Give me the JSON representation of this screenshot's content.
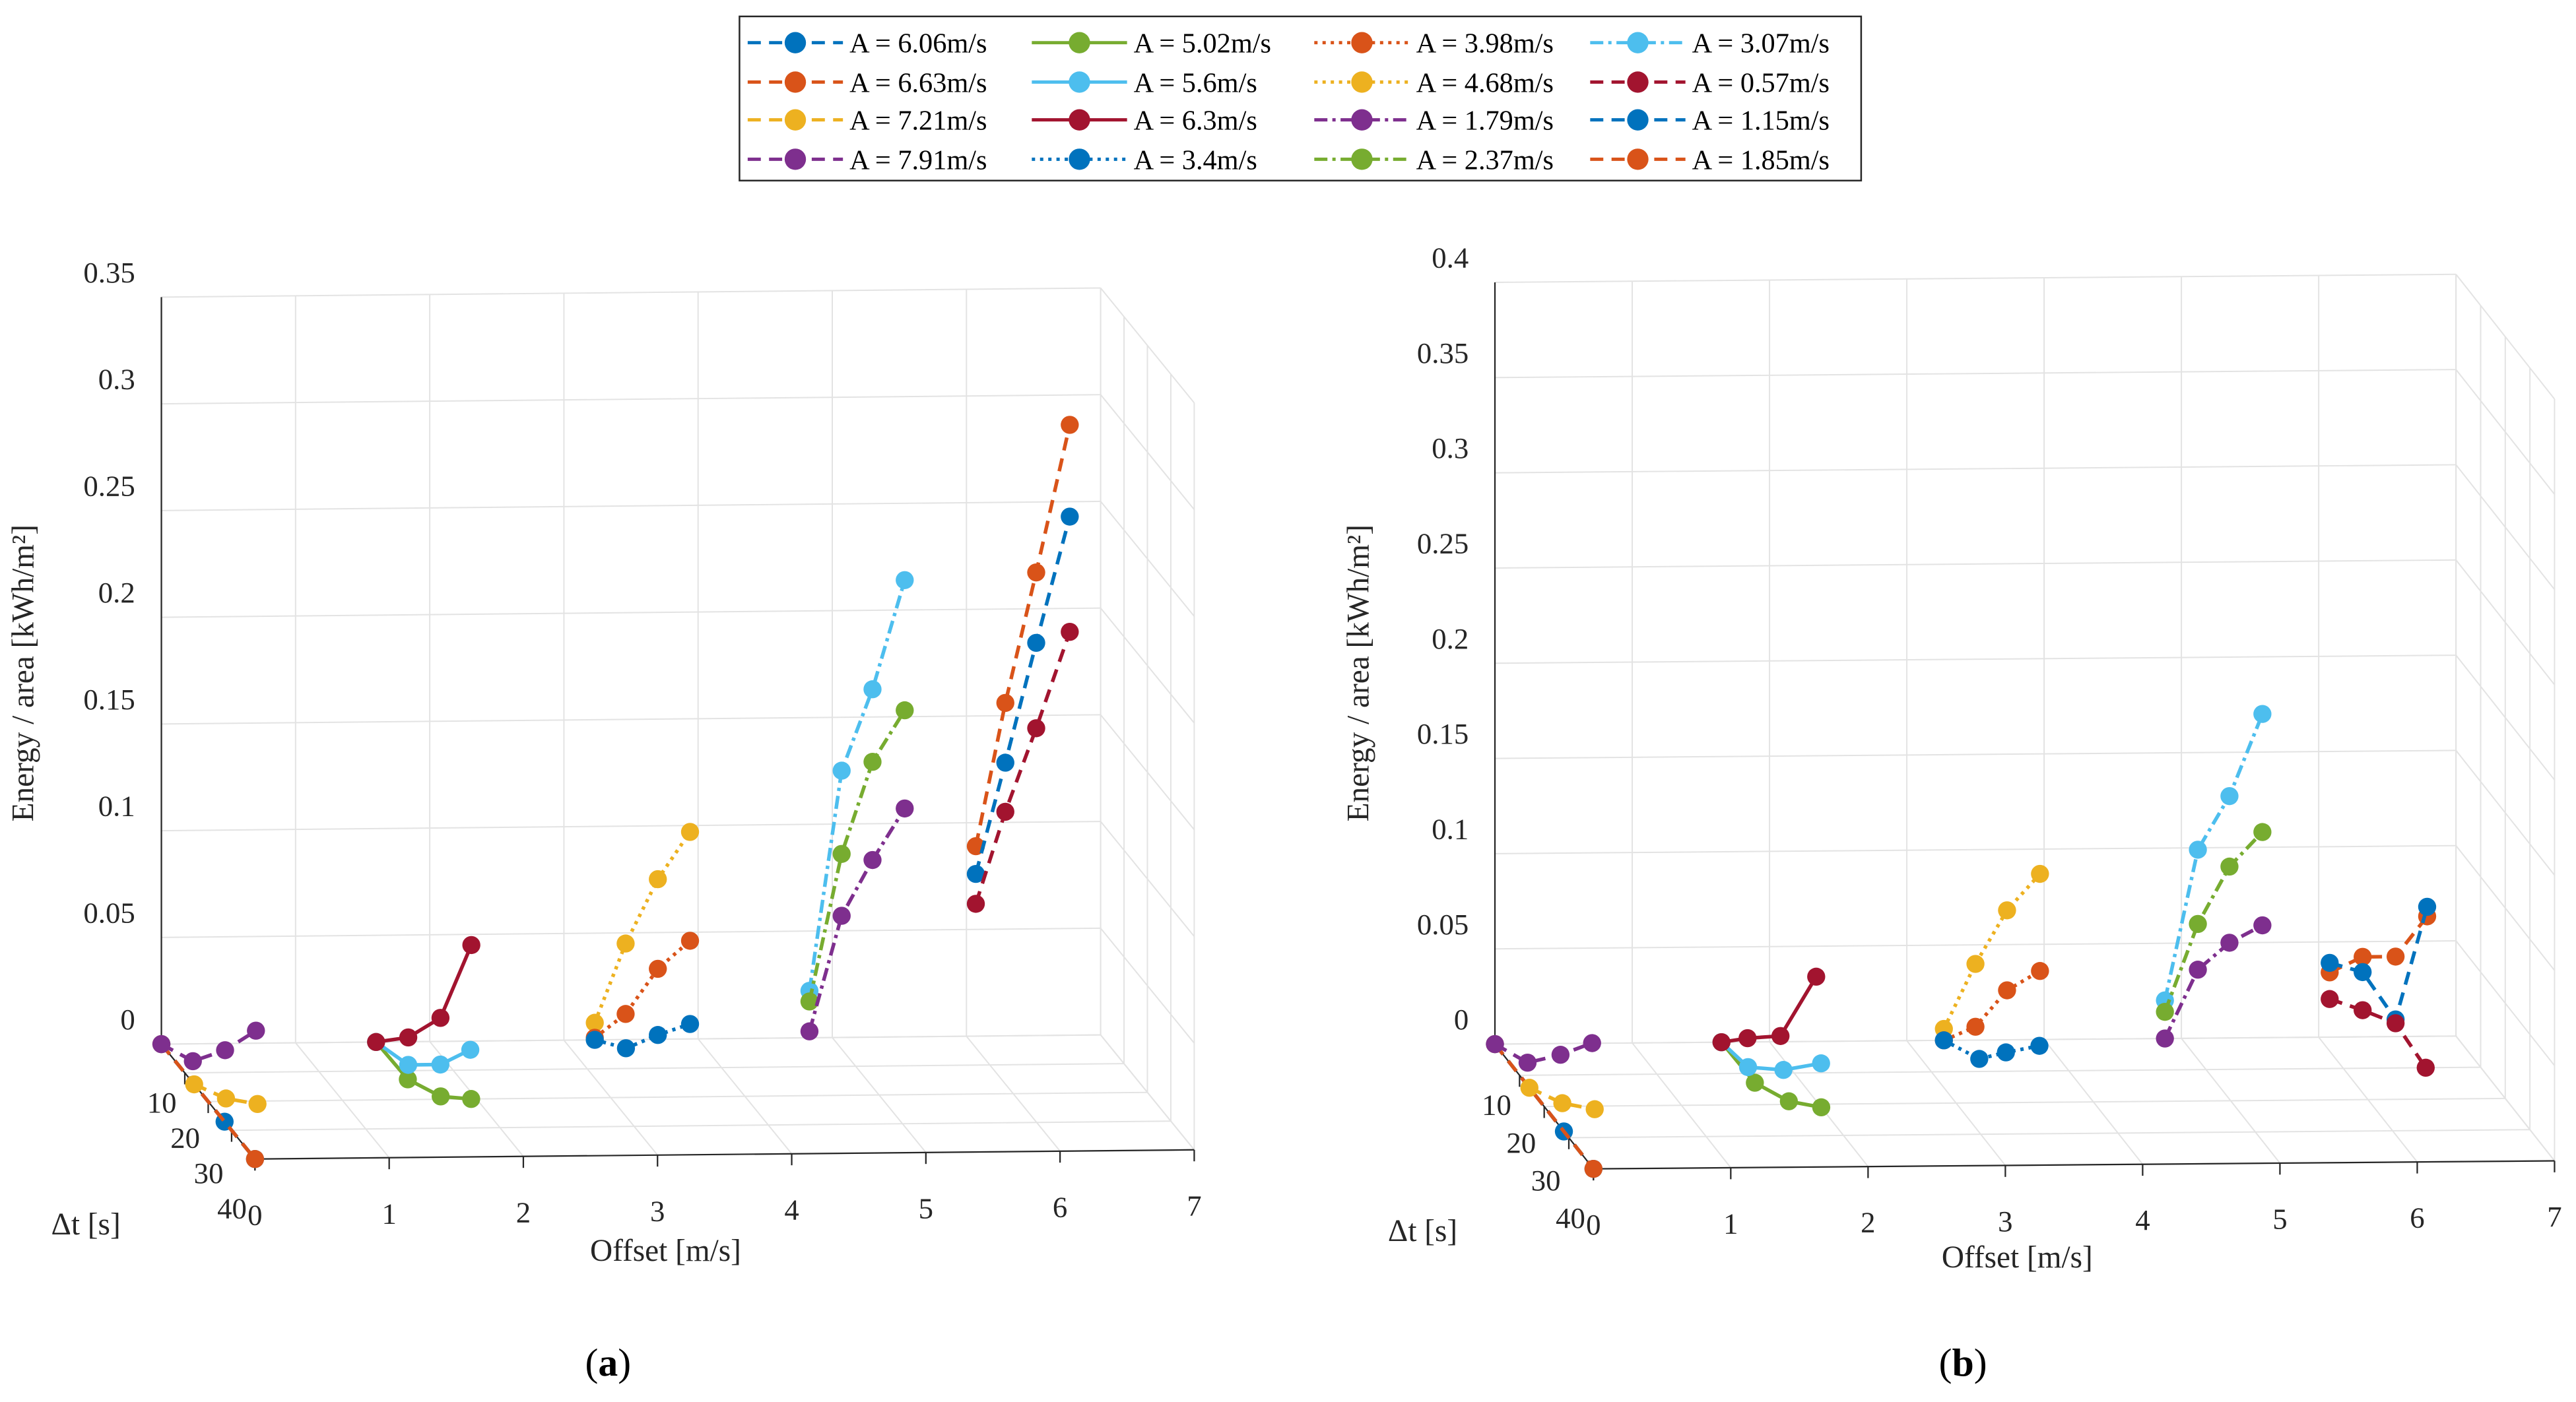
{
  "chart_data": {
    "type": "line",
    "title": "",
    "legend_position": "top-center",
    "legend": [
      {
        "label": "A = 6.06m/s",
        "color": "#0072BD",
        "style": "dashed"
      },
      {
        "label": "A = 5.02m/s",
        "color": "#77AC30",
        "style": "solid"
      },
      {
        "label": "A = 3.98m/s",
        "color": "#D95319",
        "style": "dotted"
      },
      {
        "label": "A = 3.07m/s",
        "color": "#4DBEEE",
        "style": "dashdot"
      },
      {
        "label": "A = 6.63m/s",
        "color": "#D95319",
        "style": "dashed"
      },
      {
        "label": "A = 5.6m/s",
        "color": "#4DBEEE",
        "style": "solid"
      },
      {
        "label": "A = 4.68m/s",
        "color": "#EDB120",
        "style": "dotted"
      },
      {
        "label": "A = 0.57m/s",
        "color": "#A2142F",
        "style": "dashed"
      },
      {
        "label": "A = 7.21m/s",
        "color": "#EDB120",
        "style": "dashed"
      },
      {
        "label": "A = 6.3m/s",
        "color": "#A2142F",
        "style": "solid"
      },
      {
        "label": "A = 1.79m/s",
        "color": "#7E2F8E",
        "style": "dashdot"
      },
      {
        "label": "A = 1.15m/s",
        "color": "#0072BD",
        "style": "dashed"
      },
      {
        "label": "A = 7.91m/s",
        "color": "#7E2F8E",
        "style": "dashed"
      },
      {
        "label": "A = 3.4m/s",
        "color": "#0072BD",
        "style": "dotted"
      },
      {
        "label": "A = 2.37m/s",
        "color": "#77AC30",
        "style": "dashdot"
      },
      {
        "label": "A = 1.85m/s",
        "color": "#D95319",
        "style": "dashed"
      }
    ],
    "panels": [
      {
        "label_open": "(",
        "label_letter": "a",
        "label_close": ")",
        "xlabel": "Offset [m/s]",
        "ylabel": "Δt [s]",
        "zlabel": "Energy / area [kWh/m²]",
        "xlim": [
          0,
          7
        ],
        "ylim": [
          0,
          40
        ],
        "zlim": [
          0,
          0.35
        ],
        "xticks": [
          "0",
          "1",
          "2",
          "3",
          "4",
          "5",
          "6",
          "7"
        ],
        "yticks": [
          "10",
          "20",
          "30",
          "40"
        ],
        "zticks": [
          "0",
          "0.05",
          "0.1",
          "0.15",
          "0.2",
          "0.25",
          "0.3",
          "0.35"
        ],
        "series": {
          "A = 6.06m/s": [
            [
              0,
              0,
              0
            ],
            [
              0,
              27,
              0
            ],
            [
              0,
              40,
              0
            ]
          ],
          "A = 6.63m/s": [
            [
              0,
              0,
              0
            ],
            [
              0,
              40,
              0
            ]
          ],
          "A = 7.21m/s": [
            [
              0,
              14,
              0
            ],
            [
              0.15,
              19,
              0
            ],
            [
              0.35,
              21,
              0
            ]
          ],
          "A = 7.91m/s": [
            [
              0,
              0,
              0
            ],
            [
              0.13,
              6,
              0
            ],
            [
              0.37,
              6,
              0.005
            ],
            [
              0.6,
              6,
              0.014
            ]
          ],
          "A = 5.02m/s": [
            [
              1.6,
              0,
              0
            ],
            [
              1.61,
              13,
              0
            ],
            [
              1.75,
              19,
              0
            ],
            [
              1.96,
              20,
              0
            ]
          ],
          "A = 5.6m/s": [
            [
              1.6,
              0,
              0
            ],
            [
              1.7,
              8,
              0
            ],
            [
              1.94,
              8,
              0
            ],
            [
              2.25,
              3,
              0
            ]
          ],
          "A = 6.3m/s": [
            [
              1.6,
              0,
              0
            ],
            [
              1.84,
              0,
              0.002
            ],
            [
              2.08,
              0,
              0.011
            ],
            [
              2.31,
              0,
              0.045
            ]
          ],
          "A = 4.68m/s": [
            [
              3.23,
              0,
              0.008
            ],
            [
              3.46,
              0,
              0.045
            ],
            [
              3.7,
              0,
              0.075
            ],
            [
              3.94,
              0,
              0.097
            ]
          ],
          "A = 3.98m/s": [
            [
              3.23,
              0,
              0.001
            ],
            [
              3.46,
              0,
              0.012
            ],
            [
              3.7,
              0,
              0.033
            ],
            [
              3.94,
              0,
              0.046
            ]
          ],
          "A = 3.4m/s": [
            [
              3.23,
              0,
              0
            ],
            [
              3.41,
              3,
              0
            ],
            [
              3.7,
              0,
              0.002
            ],
            [
              3.94,
              0,
              0.007
            ]
          ],
          "A = 3.07m/s": [
            [
              4.83,
              0,
              0.022
            ],
            [
              5.07,
              0,
              0.125
            ],
            [
              5.3,
              0,
              0.163
            ],
            [
              5.54,
              0,
              0.214
            ]
          ],
          "A = 2.37m/s": [
            [
              4.83,
              0,
              0.017
            ],
            [
              5.07,
              0,
              0.086
            ],
            [
              5.3,
              0,
              0.129
            ],
            [
              5.54,
              0,
              0.153
            ]
          ],
          "A = 1.79m/s": [
            [
              4.83,
              0,
              0.003
            ],
            [
              5.07,
              0,
              0.057
            ],
            [
              5.3,
              0,
              0.083
            ],
            [
              5.54,
              0,
              0.107
            ]
          ],
          "A = 1.85m/s": [
            [
              6.07,
              0,
              0.089
            ],
            [
              6.29,
              0,
              0.156
            ],
            [
              6.52,
              0,
              0.217
            ],
            [
              6.77,
              0,
              0.286
            ]
          ],
          "A = 1.15m/s": [
            [
              6.07,
              0,
              0.076
            ],
            [
              6.29,
              0,
              0.128
            ],
            [
              6.52,
              0,
              0.184
            ],
            [
              6.77,
              0,
              0.243
            ]
          ],
          "A = 0.57m/s": [
            [
              6.07,
              0,
              0.062
            ],
            [
              6.29,
              0,
              0.105
            ],
            [
              6.52,
              0,
              0.144
            ],
            [
              6.77,
              0,
              0.189
            ]
          ]
        }
      },
      {
        "label_open": "(",
        "label_letter": "b",
        "label_close": ")",
        "xlabel": "Offset [m/s]",
        "ylabel": "Δt [s]",
        "zlabel": "Energy / area [kWh/m²]",
        "xlim": [
          0,
          7
        ],
        "ylim": [
          0,
          40
        ],
        "zlim": [
          0,
          0.4
        ],
        "xticks": [
          "0",
          "1",
          "2",
          "3",
          "4",
          "5",
          "6",
          "7"
        ],
        "yticks": [
          "10",
          "20",
          "30",
          "40"
        ],
        "zticks": [
          "0",
          "0.05",
          "0.1",
          "0.15",
          "0.2",
          "0.25",
          "0.3",
          "0.35",
          "0.4"
        ],
        "series": {
          "A = 6.06m/s": [
            [
              0,
              0,
              0
            ],
            [
              0,
              28,
              0
            ],
            [
              0,
              40,
              0
            ]
          ],
          "A = 6.63m/s": [
            [
              0,
              0,
              0
            ],
            [
              0,
              40,
              0
            ]
          ],
          "A = 7.21m/s": [
            [
              0,
              14,
              0
            ],
            [
              0.15,
              19,
              0
            ],
            [
              0.35,
              21,
              0
            ]
          ],
          "A = 7.91m/s": [
            [
              0,
              0,
              0
            ],
            [
              0.13,
              6,
              0
            ],
            [
              0.37,
              6,
              0.004
            ],
            [
              0.6,
              6,
              0.01
            ]
          ],
          "A = 5.02m/s": [
            [
              1.65,
              0,
              0
            ],
            [
              1.66,
              13,
              0
            ],
            [
              1.8,
              19,
              0
            ],
            [
              2.0,
              21,
              0
            ]
          ],
          "A = 5.6m/s": [
            [
              1.65,
              0,
              0
            ],
            [
              1.7,
              8,
              0
            ],
            [
              1.94,
              9,
              0
            ],
            [
              2.25,
              7,
              0
            ]
          ],
          "A = 6.3m/s": [
            [
              1.65,
              0,
              0
            ],
            [
              1.84,
              0,
              0.002
            ],
            [
              2.08,
              0,
              0.003
            ],
            [
              2.34,
              0,
              0.034
            ]
          ],
          "A = 4.68m/s": [
            [
              3.27,
              0,
              0.006
            ],
            [
              3.5,
              0,
              0.04
            ],
            [
              3.73,
              0,
              0.068
            ],
            [
              3.97,
              0,
              0.087
            ]
          ],
          "A = 3.98m/s": [
            [
              3.27,
              0,
              0
            ],
            [
              3.5,
              0,
              0.007
            ],
            [
              3.73,
              0,
              0.026
            ],
            [
              3.97,
              0,
              0.036
            ]
          ],
          "A = 3.4m/s": [
            [
              3.27,
              0,
              0
            ],
            [
              3.42,
              6,
              0
            ],
            [
              3.65,
              4,
              0
            ],
            [
              3.93,
              2,
              0
            ]
          ],
          "A = 3.07m/s": [
            [
              4.88,
              0,
              0.02
            ],
            [
              5.12,
              0,
              0.099
            ],
            [
              5.35,
              0,
              0.127
            ],
            [
              5.59,
              0,
              0.17
            ]
          ],
          "A = 2.37m/s": [
            [
              4.88,
              0,
              0.014
            ],
            [
              5.12,
              0,
              0.06
            ],
            [
              5.35,
              0,
              0.09
            ],
            [
              5.59,
              0,
              0.108
            ]
          ],
          "A = 1.79m/s": [
            [
              4.88,
              0,
              0
            ],
            [
              5.12,
              0,
              0.036
            ],
            [
              5.35,
              0,
              0.05
            ],
            [
              5.59,
              0,
              0.059
            ]
          ],
          "A = 1.85m/s": [
            [
              6.08,
              0,
              0.034
            ],
            [
              6.32,
              0,
              0.042
            ],
            [
              6.56,
              0,
              0.042
            ],
            [
              6.79,
              0,
              0.063
            ]
          ],
          "A = 1.15m/s": [
            [
              6.08,
              0,
              0.039
            ],
            [
              6.32,
              0,
              0.034
            ],
            [
              6.56,
              0,
              0.009
            ],
            [
              6.79,
              0,
              0.068
            ]
          ],
          "A = 0.57m/s": [
            [
              6.08,
              0,
              0.02
            ],
            [
              6.32,
              0,
              0.014
            ],
            [
              6.56,
              0,
              0.007
            ],
            [
              6.6,
              10,
              0
            ]
          ]
        }
      }
    ]
  }
}
